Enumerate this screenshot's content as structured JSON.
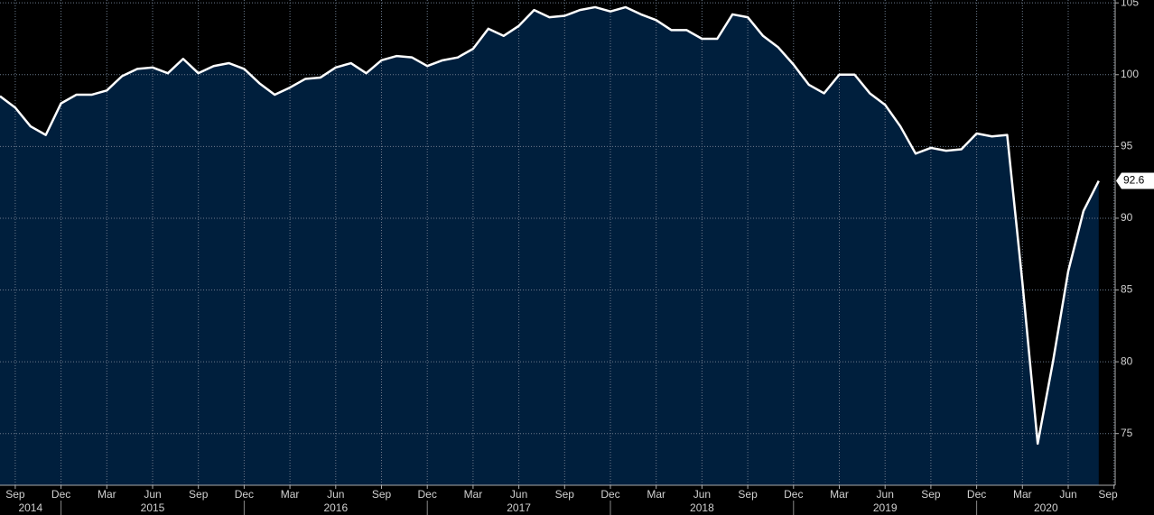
{
  "chart_data": {
    "type": "area",
    "categories": [
      null,
      "Sep",
      null,
      null,
      "Dec",
      null,
      null,
      "Mar",
      null,
      null,
      "Jun",
      null,
      null,
      "Sep",
      null,
      null,
      "Dec",
      null,
      null,
      "Mar",
      null,
      null,
      "Jun",
      null,
      null,
      "Sep",
      null,
      null,
      "Dec",
      null,
      null,
      "Mar",
      null,
      null,
      "Jun",
      null,
      null,
      "Sep",
      null,
      null,
      "Dec",
      null,
      null,
      "Mar",
      null,
      null,
      "Jun",
      null,
      null,
      "Sep",
      null,
      null,
      "Dec",
      null,
      null,
      "Mar",
      null,
      null,
      "Jun",
      null,
      null,
      "Sep",
      null,
      null,
      "Dec",
      null,
      null,
      "Mar",
      null,
      null,
      "Jun",
      null,
      null,
      "Sep"
    ],
    "years": [
      "2014",
      "2015",
      "2016",
      "2017",
      "2018",
      "2019",
      "2020"
    ],
    "values": [
      98.5,
      97.7,
      96.4,
      95.8,
      98.0,
      98.6,
      98.6,
      98.9,
      99.9,
      100.4,
      100.5,
      100.1,
      101.1,
      100.1,
      100.6,
      100.8,
      100.4,
      99.4,
      98.6,
      99.1,
      99.7,
      99.8,
      100.5,
      100.8,
      100.1,
      101.0,
      101.3,
      101.2,
      100.6,
      101.0,
      101.2,
      101.8,
      103.2,
      102.7,
      103.4,
      104.5,
      104.0,
      104.1,
      104.5,
      104.7,
      104.4,
      104.7,
      104.2,
      103.8,
      103.1,
      103.1,
      102.5,
      102.5,
      104.2,
      104.0,
      102.7,
      101.9,
      100.7,
      99.3,
      98.7,
      100.0,
      100.0,
      98.7,
      97.9,
      96.4,
      94.5,
      94.9,
      94.7,
      94.8,
      95.9,
      95.7,
      95.8,
      85.5,
      74.3,
      80.0,
      86.3,
      90.5,
      92.6,
      null
    ],
    "color": "#001f3d",
    "line_color": "#ffffff",
    "ylim": [
      71.4,
      105.2
    ],
    "yticks": [
      75,
      80,
      85,
      90,
      95,
      100,
      105
    ],
    "grid": true
  }
}
